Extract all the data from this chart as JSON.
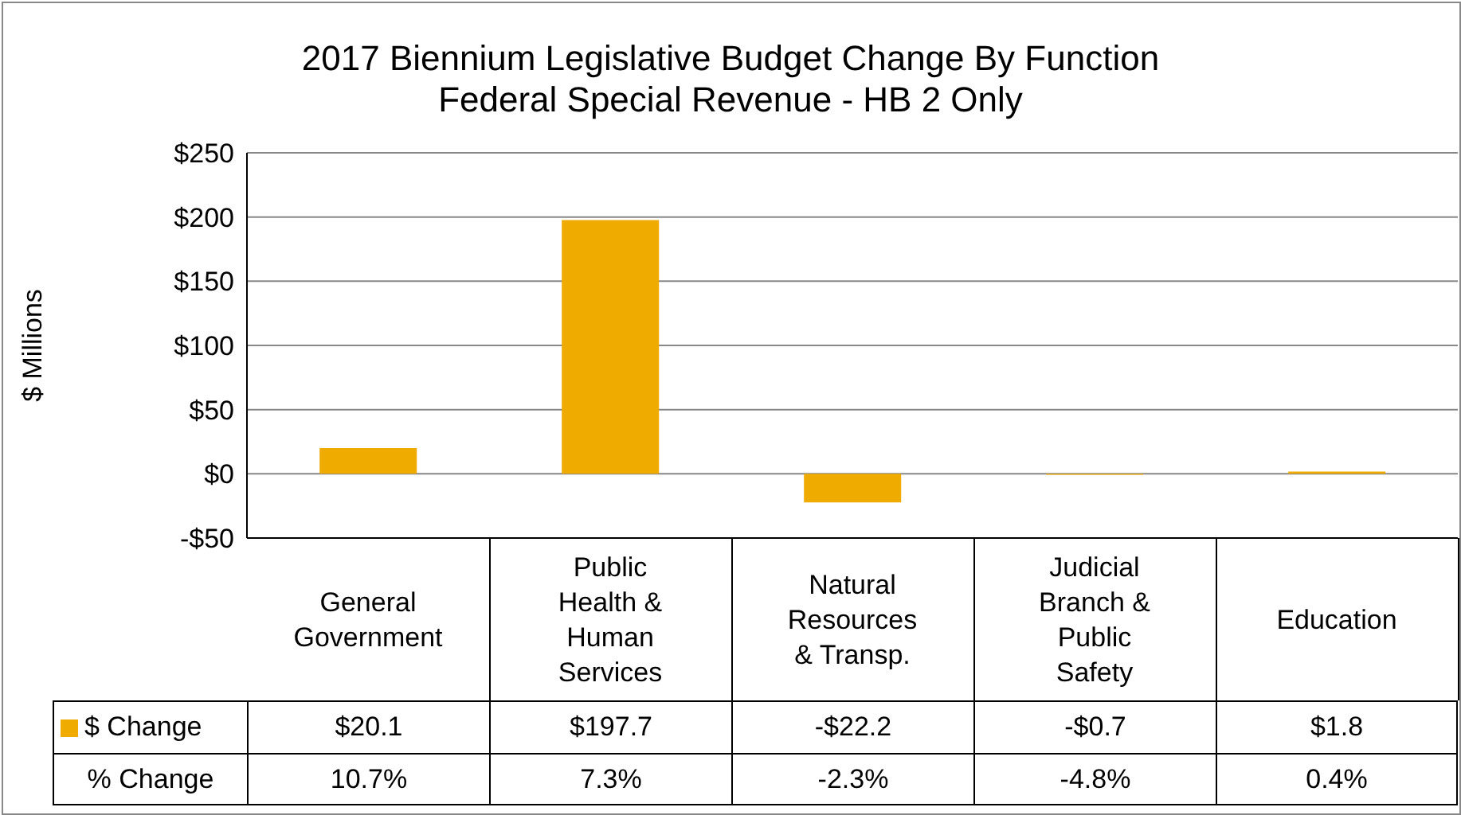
{
  "chart_data": {
    "type": "bar",
    "title": "2017 Biennium Legislative Budget Change By Function",
    "subtitle": "Federal Special Revenue - HB 2 Only",
    "ylabel": "$ Millions",
    "categories": [
      "General Government",
      "Public Health & Human Services",
      "Natural Resources & Transp.",
      "Judicial Branch & Public Safety",
      "Education"
    ],
    "series": [
      {
        "name": "$ Change",
        "color": "#f0ab00",
        "values": [
          20.1,
          197.7,
          -22.2,
          -0.7,
          1.8
        ],
        "value_labels": [
          "$20.1",
          "$197.7",
          "-$22.2",
          "-$0.7",
          "$1.8"
        ]
      }
    ],
    "annotations": [
      "% Change",
      "10.7%",
      "7.3%",
      "-2.3%",
      "-4.8%",
      "0.4%"
    ],
    "ylim": [
      -50,
      250
    ],
    "yticks": [
      {
        "value": -50,
        "label": "-$50"
      },
      {
        "value": 0,
        "label": "$0"
      },
      {
        "value": 50,
        "label": "$50"
      },
      {
        "value": 100,
        "label": "$100"
      },
      {
        "value": 150,
        "label": "$150"
      },
      {
        "value": 200,
        "label": "$200"
      },
      {
        "value": 250,
        "label": "$250"
      }
    ],
    "grid": "y"
  }
}
